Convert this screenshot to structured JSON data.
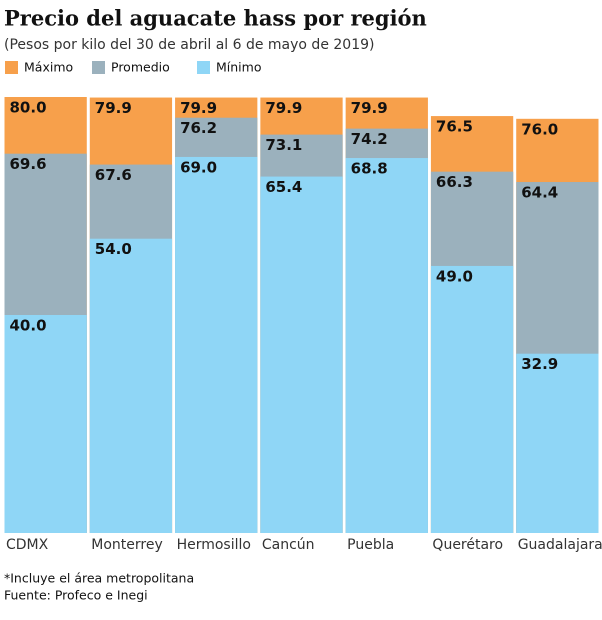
{
  "chart_data": {
    "type": "overlap-bar",
    "title": "Precio del aguacate hass por región",
    "subtitle": "(Pesos por kilo del 30 de abril al 6 de mayo de 2019)",
    "categories": [
      "CDMX",
      "Monterrey",
      "Hermosillo",
      "Cancún",
      "Puebla",
      "Querétaro",
      "Guadalajara"
    ],
    "series": [
      {
        "name": "Máximo",
        "color": "#f7a04b",
        "values": [
          80.0,
          79.9,
          79.9,
          79.9,
          79.9,
          76.5,
          76.0
        ],
        "value_labels": [
          "80.0",
          "79.9",
          "79.9",
          "79.9",
          "79.9",
          "76.5",
          "76.0"
        ]
      },
      {
        "name": "Promedio",
        "color": "#9bb1bd",
        "values": [
          69.6,
          67.6,
          76.2,
          73.1,
          74.2,
          66.3,
          64.4
        ],
        "value_labels": [
          "69.6",
          "67.6",
          "76.2",
          "73.1",
          "74.2",
          "66.3",
          "64.4"
        ]
      },
      {
        "name": "Mínimo",
        "color": "#8fd6f6",
        "values": [
          40.0,
          54.0,
          69.0,
          65.4,
          68.8,
          49.0,
          32.9
        ],
        "value_labels": [
          "40.0",
          "54.0",
          "69.0",
          "65.4",
          "68.8",
          "49.0",
          "32.9"
        ]
      }
    ],
    "ylim": [
      0,
      80
    ],
    "notes": [
      "*Incluye el área metropolitana",
      "Fuente: Profeco e Inegi"
    ]
  }
}
